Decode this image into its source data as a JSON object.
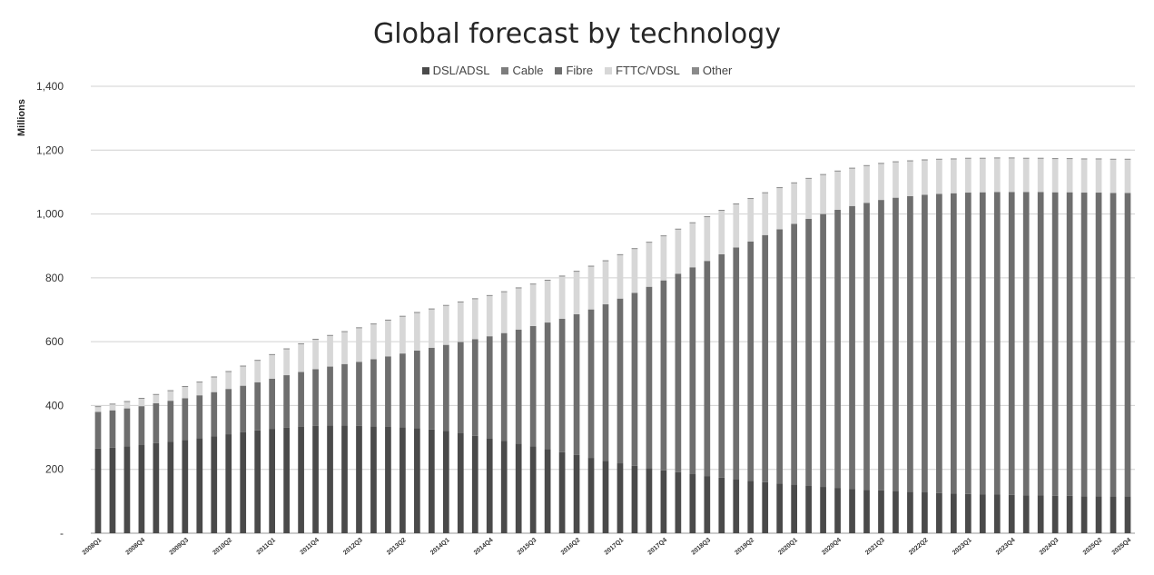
{
  "chart_data": {
    "type": "bar",
    "stacked": true,
    "title": "Global forecast by technology",
    "ylabel": "Millions",
    "xlabel": "",
    "ylim": [
      0,
      1400
    ],
    "yticks": [
      0,
      200,
      400,
      600,
      800,
      1000,
      1200,
      1400
    ],
    "ytick_labels": [
      "-",
      "200",
      "400",
      "600",
      "800",
      "1,000",
      "1,200",
      "1,400"
    ],
    "grid": "horizontal",
    "legend_position": "top",
    "categories": [
      "2008Q1",
      "2008Q2",
      "2008Q3",
      "2008Q4",
      "2009Q1",
      "2009Q2",
      "2009Q3",
      "2009Q4",
      "2010Q1",
      "2010Q2",
      "2010Q3",
      "2010Q4",
      "2011Q1",
      "2011Q2",
      "2011Q3",
      "2011Q4",
      "2012Q1",
      "2012Q2",
      "2012Q3",
      "2012Q4",
      "2013Q1",
      "2013Q2",
      "2013Q3",
      "2013Q4",
      "2014Q1",
      "2014Q2",
      "2014Q3",
      "2014Q4",
      "2015Q1",
      "2015Q2",
      "2015Q3",
      "2015Q4",
      "2016Q1",
      "2016Q2",
      "2016Q3",
      "2016Q4",
      "2017Q1",
      "2017Q2",
      "2017Q3",
      "2017Q4",
      "2018Q1",
      "2018Q2",
      "2018Q3",
      "2018Q4",
      "2019Q1",
      "2019Q2",
      "2019Q3",
      "2019Q4",
      "2020Q1",
      "2020Q2",
      "2020Q3",
      "2020Q4",
      "2021Q1",
      "2021Q2",
      "2021Q3",
      "2021Q4",
      "2022Q1",
      "2022Q2",
      "2022Q3",
      "2022Q4",
      "2023Q1",
      "2023Q2",
      "2023Q3",
      "2023Q4",
      "2024Q1",
      "2024Q2",
      "2024Q3",
      "2024Q4",
      "2025Q1",
      "2025Q2",
      "2025Q3",
      "2025Q4"
    ],
    "x_tick_labels": [
      "2008Q1",
      "2008Q4",
      "2009Q3",
      "2010Q2",
      "2011Q1",
      "2011Q4",
      "2012Q3",
      "2013Q2",
      "2014Q1",
      "2014Q4",
      "2015Q3",
      "2016Q2",
      "2017Q1",
      "2017Q4",
      "2018Q3",
      "2019Q2",
      "2020Q1",
      "2020Q4",
      "2021Q3",
      "2022Q2",
      "2023Q1",
      "2023Q4",
      "2024Q3",
      "2025Q2",
      "2025Q4"
    ],
    "series": [
      {
        "name": "DSL/ADSL",
        "color": "#4a4a4a",
        "values": [
          265,
          268,
          272,
          276,
          282,
          287,
          292,
          298,
          304,
          310,
          316,
          322,
          327,
          331,
          334,
          336,
          337,
          337,
          336,
          335,
          334,
          332,
          329,
          325,
          320,
          313,
          305,
          297,
          289,
          281,
          272,
          263,
          254,
          245,
          236,
          227,
          219,
          211,
          204,
          197,
          191,
          185,
          179,
          174,
          169,
          164,
          160,
          156,
          152,
          148,
          145,
          142,
          139,
          136,
          134,
          132,
          130,
          128,
          126,
          124,
          123,
          122,
          121,
          120,
          119,
          118,
          117,
          117,
          116,
          116,
          115,
          115
        ]
      },
      {
        "name": "Cable",
        "color": "#7d7d7d",
        "values": [
          0,
          0,
          0,
          0,
          0,
          0,
          0,
          0,
          0,
          0,
          0,
          0,
          0,
          0,
          0,
          0,
          0,
          0,
          0,
          0,
          0,
          0,
          0,
          0,
          0,
          0,
          0,
          0,
          0,
          0,
          0,
          0,
          0,
          0,
          0,
          0,
          0,
          0,
          0,
          0,
          0,
          0,
          0,
          0,
          0,
          0,
          0,
          0,
          0,
          0,
          0,
          0,
          0,
          0,
          0,
          0,
          0,
          0,
          0,
          0,
          0,
          0,
          0,
          0,
          0,
          0,
          0,
          0,
          0,
          0,
          0,
          0
        ]
      },
      {
        "name": "Fibre",
        "color": "#6e6e6e",
        "values": [
          115,
          117,
          119,
          122,
          125,
          128,
          131,
          134,
          138,
          142,
          146,
          151,
          157,
          164,
          171,
          178,
          185,
          193,
          201,
          210,
          220,
          231,
          243,
          256,
          270,
          286,
          303,
          320,
          338,
          357,
          377,
          397,
          418,
          441,
          465,
          490,
          516,
          542,
          568,
          595,
          622,
          648,
          674,
          700,
          726,
          750,
          774,
          796,
          817,
          837,
          855,
          871,
          886,
          899,
          910,
          919,
          926,
          932,
          937,
          941,
          944,
          946,
          948,
          949,
          950,
          951,
          951,
          951,
          951,
          951,
          951,
          951
        ]
      },
      {
        "name": "FTTC/VDSL",
        "color": "#d7d7d7",
        "values": [
          15,
          18,
          20,
          23,
          26,
          30,
          35,
          40,
          46,
          53,
          60,
          67,
          74,
          81,
          87,
          92,
          96,
          100,
          105,
          109,
          112,
          115,
          118,
          120,
          122,
          124,
          125,
          126,
          128,
          129,
          130,
          131,
          132,
          133,
          134,
          135,
          136,
          137,
          138,
          138,
          138,
          138,
          137,
          136,
          135,
          133,
          131,
          129,
          127,
          125,
          122,
          120,
          117,
          115,
          113,
          111,
          109,
          108,
          107,
          106,
          106,
          105,
          105,
          105,
          104,
          104,
          104,
          104,
          104,
          104,
          104,
          104
        ]
      },
      {
        "name": "Other",
        "color": "#8a8a8a",
        "values": [
          3,
          3,
          3,
          3,
          3,
          3,
          3,
          3,
          3,
          3,
          3,
          3,
          3,
          3,
          3,
          3,
          3,
          3,
          3,
          3,
          3,
          3,
          3,
          3,
          3,
          3,
          3,
          3,
          3,
          3,
          3,
          3,
          3,
          3,
          3,
          3,
          3,
          3,
          3,
          3,
          3,
          3,
          3,
          3,
          3,
          3,
          3,
          3,
          3,
          3,
          3,
          3,
          3,
          3,
          3,
          3,
          3,
          3,
          3,
          3,
          3,
          3,
          3,
          3,
          3,
          3,
          3,
          3,
          3,
          3,
          3,
          3
        ]
      }
    ]
  }
}
